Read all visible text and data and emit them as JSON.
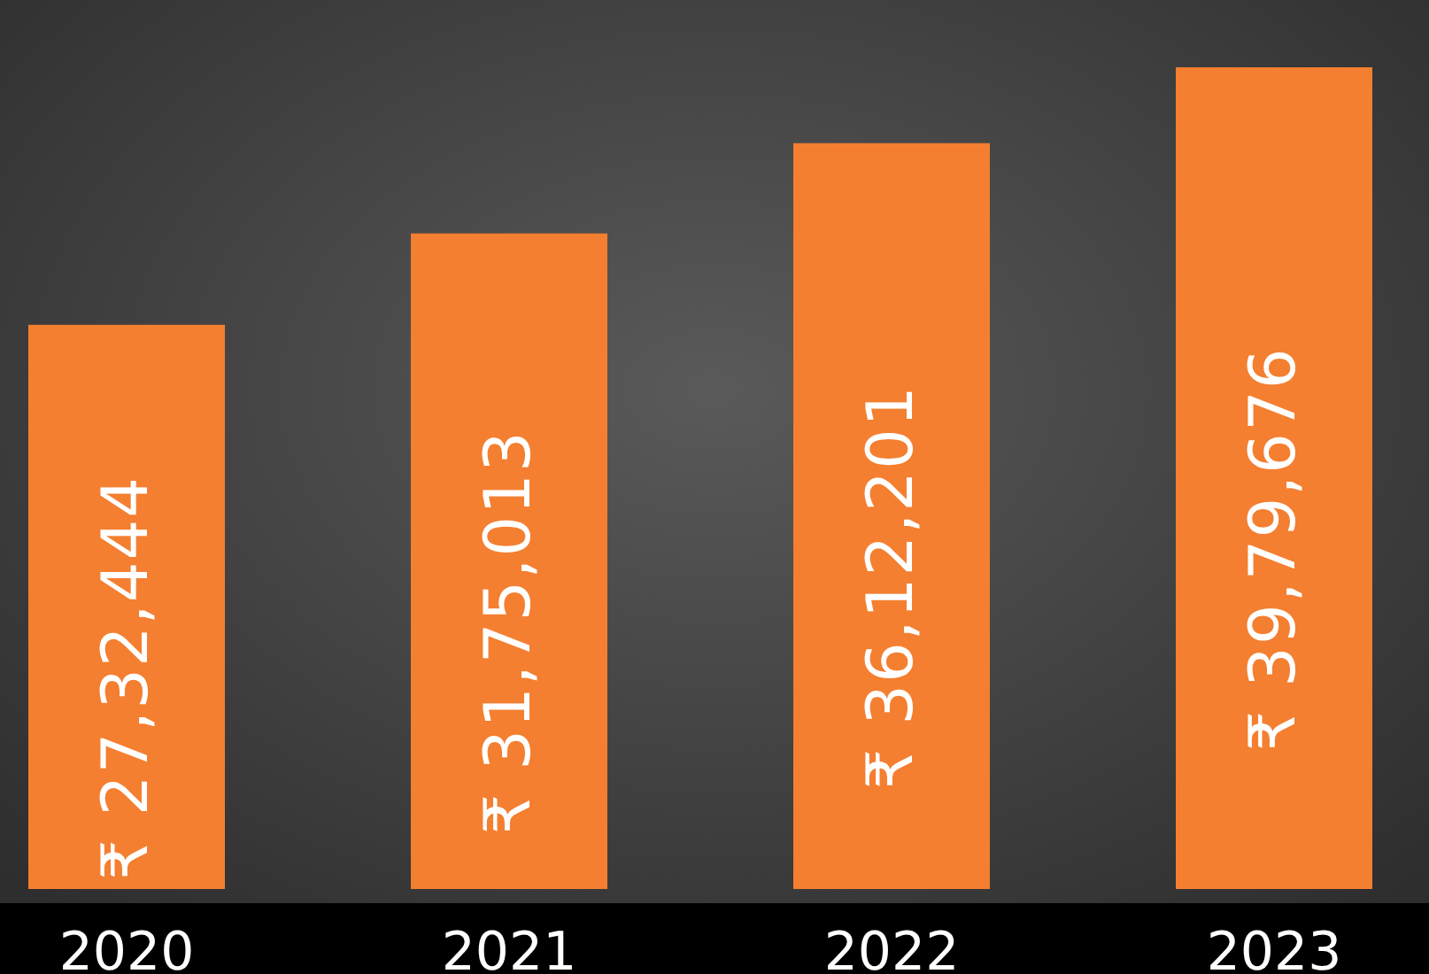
{
  "chart_data": {
    "type": "bar",
    "categories": [
      "2020",
      "2021",
      "2022",
      "2023"
    ],
    "values": [
      2732444,
      3175013,
      3612201,
      3979676
    ],
    "value_labels": [
      "₹ 27,32,444",
      "₹ 31,75,013",
      "₹ 36,12,201",
      "₹ 39,79,676"
    ],
    "color": "#f47f30"
  }
}
